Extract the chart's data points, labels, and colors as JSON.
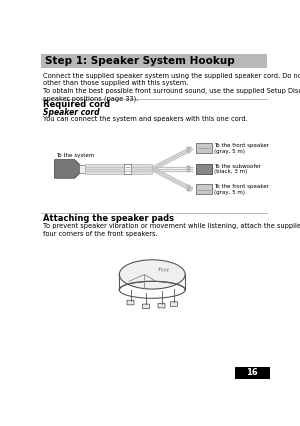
{
  "page_bg": "#ffffff",
  "header_bg": "#b8b8b8",
  "header_text": "Step 1: Speaker System Hookup",
  "header_fontsize": 7.5,
  "body_text1": "Connect the supplied speaker system using the supplied speaker cord. Do not connect any speakers\nother than those supplied with this system.\nTo obtain the best possible front surround sound, use the supplied Setup Disc to determine the ideal\nspeaker positions (page 33).",
  "section1_title": "Required cord",
  "section1_subtitle": "Speaker cord",
  "section1_body": "You can connect the system and speakers with this one cord.",
  "section2_title": "Attaching the speaker pads",
  "section2_body": "To prevent speaker vibration or movement while listening, attach the supplied foot pads to the bottom\nfour corners of the front speakers.",
  "label_system": "To the system",
  "label_front1": "To the front speaker\n(gray, 5 m)",
  "label_sub": "To the subwoofer\n(black, 3 m)",
  "label_front2": "To the front speaker\n(gray, 5 m)",
  "text_fontsize": 4.8,
  "small_fontsize": 4.0,
  "section_fontsize": 6.0,
  "subsection_fontsize": 5.5,
  "sep_color": "#aaaaaa",
  "cable_color": "#cccccc",
  "cable_outline": "#999999",
  "connector_dark": "#888888",
  "connector_light": "#dddddd"
}
